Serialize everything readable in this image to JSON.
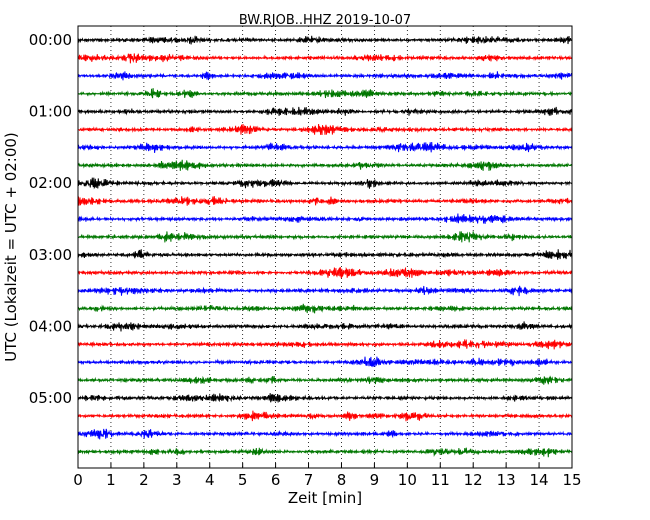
{
  "chart_data": {
    "type": "line",
    "title": "BW.RJOB..HHZ 2019-10-07",
    "xlabel": "Zeit  [min]",
    "ylabel": "UTC (Lokalzeit = UTC + 02:00)",
    "xlim": [
      0,
      15
    ],
    "x_ticks": [
      "0",
      "1",
      "2",
      "3",
      "4",
      "5",
      "6",
      "7",
      "8",
      "9",
      "10",
      "11",
      "12",
      "13",
      "14",
      "15"
    ],
    "y_tick_labels": [
      "00:00",
      "01:00",
      "02:00",
      "03:00",
      "04:00",
      "05:00"
    ],
    "trace_interval_min": 15,
    "trace_count": 24,
    "trace_colors": [
      "#000000",
      "#ff0000",
      "#0000ff",
      "#007700"
    ],
    "grid": "vertical dotted at each minute"
  }
}
